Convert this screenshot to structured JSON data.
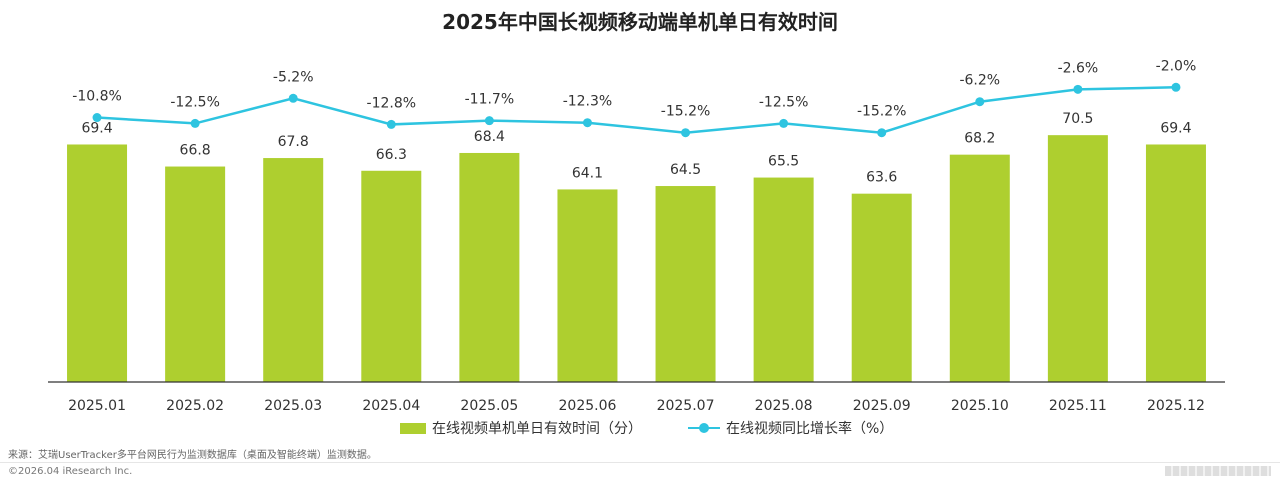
{
  "title": "2025年中国长视频移动端单机单日有效时间",
  "colors": {
    "bar": "#aecf2f",
    "line": "#2ec4e0",
    "axis": "#333333",
    "text": "#333333"
  },
  "chart_data": {
    "type": "bar",
    "categories": [
      "2025.01",
      "2025.02",
      "2025.03",
      "2025.04",
      "2025.05",
      "2025.06",
      "2025.07",
      "2025.08",
      "2025.09",
      "2025.10",
      "2025.11",
      "2025.12"
    ],
    "series": [
      {
        "name": "在线视频单机单日有效时间（分）",
        "type": "bar",
        "values": [
          69.4,
          66.8,
          67.8,
          66.3,
          68.4,
          64.1,
          64.5,
          65.5,
          63.6,
          68.2,
          70.5,
          69.4
        ],
        "labels": [
          "69.4",
          "66.8",
          "67.8",
          "66.3",
          "68.4",
          "64.1",
          "64.5",
          "65.5",
          "63.6",
          "68.2",
          "70.5",
          "69.4"
        ]
      },
      {
        "name": "在线视频同比增长率（%）",
        "type": "line",
        "values": [
          -10.8,
          -12.5,
          -5.2,
          -12.8,
          -11.7,
          -12.3,
          -15.2,
          -12.5,
          -15.2,
          -6.2,
          -2.6,
          -2.0
        ],
        "labels": [
          "-10.8%",
          "-12.5%",
          "-5.2%",
          "-12.8%",
          "-11.7%",
          "-12.3%",
          "-15.2%",
          "-12.5%",
          "-15.2%",
          "-6.2%",
          "-2.6%",
          "-2.0%"
        ]
      }
    ],
    "xlabel": "",
    "ylabel": "",
    "legend_position": "bottom-center"
  },
  "legend": {
    "bar_label": "在线视频单机单日有效时间（分）",
    "line_label": "在线视频同比增长率（%）"
  },
  "footer": {
    "source": "来源：艾瑞UserTracker多平台网民行为监测数据库（桌面及智能终端）监测数据。",
    "copyright": "©2026.04 iResearch Inc."
  }
}
